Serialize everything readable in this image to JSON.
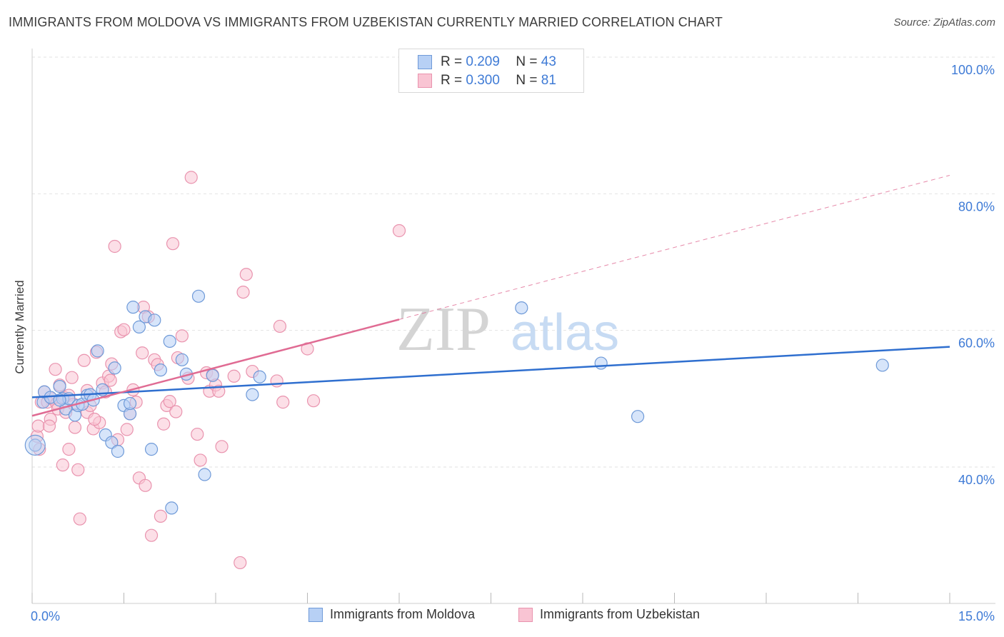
{
  "header": {
    "title": "IMMIGRANTS FROM MOLDOVA VS IMMIGRANTS FROM UZBEKISTAN CURRENTLY MARRIED CORRELATION CHART",
    "source": "Source: ZipAtlas.com"
  },
  "watermark": {
    "part1": "ZIP",
    "part2": "atlas"
  },
  "legend": {
    "r_label": "R =",
    "n_label": "N =",
    "series1": {
      "r": "0.209",
      "n": "43"
    },
    "series2": {
      "r": "0.300",
      "n": "81"
    }
  },
  "colors": {
    "moldova_fill": "#b7d0f5",
    "moldova_stroke": "#6f9ad8",
    "moldova_line": "#2f6fcf",
    "uzbekistan_fill": "#f9c4d3",
    "uzbekistan_stroke": "#e993ae",
    "uzbekistan_line": "#e06b93",
    "tick_text": "#3f7bd6"
  },
  "chart_data": {
    "type": "scatter",
    "title": "IMMIGRANTS FROM MOLDOVA VS IMMIGRANTS FROM UZBEKISTAN CURRENTLY MARRIED CORRELATION CHART",
    "xlabel": "",
    "ylabel": "Currently Married",
    "xlim": [
      0,
      15
    ],
    "ylim": [
      20,
      102
    ],
    "x_tick_labels": [
      {
        "value": 0,
        "label": "0.0%"
      },
      {
        "value": 15,
        "label": "15.0%"
      }
    ],
    "y_tick_labels": [
      {
        "value": 40,
        "label": "40.0%"
      },
      {
        "value": 60,
        "label": "60.0%"
      },
      {
        "value": 80,
        "label": "80.0%"
      },
      {
        "value": 100,
        "label": "100.0%"
      }
    ],
    "legend_position": "top-center",
    "series": [
      {
        "name": "Immigrants from Moldova",
        "r": 0.209,
        "n": 43,
        "trend": {
          "x0": 0,
          "y0": 50.2,
          "x1": 15,
          "y1": 57.6,
          "dashed_to": null
        },
        "points": [
          [
            0.05,
            43.2
          ],
          [
            0.18,
            49.5
          ],
          [
            0.2,
            51.0
          ],
          [
            0.3,
            50.2
          ],
          [
            0.45,
            51.8
          ],
          [
            0.5,
            50.0
          ],
          [
            0.55,
            48.5
          ],
          [
            0.6,
            50.0
          ],
          [
            0.7,
            47.6
          ],
          [
            0.75,
            49.0
          ],
          [
            0.82,
            49.2
          ],
          [
            0.9,
            50.5
          ],
          [
            0.95,
            50.6
          ],
          [
            1.0,
            49.8
          ],
          [
            1.07,
            57.0
          ],
          [
            1.15,
            51.3
          ],
          [
            1.2,
            44.7
          ],
          [
            1.3,
            43.6
          ],
          [
            1.35,
            54.5
          ],
          [
            1.4,
            42.3
          ],
          [
            1.5,
            49.0
          ],
          [
            1.6,
            47.8
          ],
          [
            1.6,
            49.3
          ],
          [
            1.65,
            63.4
          ],
          [
            1.75,
            60.5
          ],
          [
            1.85,
            62.0
          ],
          [
            1.95,
            42.6
          ],
          [
            2.0,
            61.5
          ],
          [
            2.1,
            54.2
          ],
          [
            2.25,
            58.4
          ],
          [
            2.28,
            34.0
          ],
          [
            2.45,
            55.7
          ],
          [
            2.52,
            53.6
          ],
          [
            2.72,
            65.0
          ],
          [
            2.82,
            38.9
          ],
          [
            2.95,
            53.4
          ],
          [
            3.6,
            50.6
          ],
          [
            3.72,
            53.2
          ],
          [
            8.0,
            63.3
          ],
          [
            9.3,
            55.2
          ],
          [
            9.9,
            47.4
          ],
          [
            13.9,
            54.9
          ],
          [
            0.45,
            49.8
          ]
        ]
      },
      {
        "name": "Immigrants from Uzbekistan",
        "r": 0.3,
        "n": 81,
        "trend": {
          "x0": 0,
          "y0": 47.5,
          "x1": 6,
          "y1": 61.6,
          "dashed_to": {
            "x": 15,
            "y": 82.7
          }
        },
        "points": [
          [
            0.08,
            44.5
          ],
          [
            0.1,
            46.0
          ],
          [
            0.12,
            42.6
          ],
          [
            0.15,
            49.5
          ],
          [
            0.2,
            51.0
          ],
          [
            0.25,
            49.5
          ],
          [
            0.3,
            47.0
          ],
          [
            0.32,
            50.0
          ],
          [
            0.38,
            54.3
          ],
          [
            0.4,
            49.3
          ],
          [
            0.42,
            48.5
          ],
          [
            0.45,
            52.0
          ],
          [
            0.5,
            40.3
          ],
          [
            0.52,
            50.2
          ],
          [
            0.55,
            48.0
          ],
          [
            0.6,
            42.6
          ],
          [
            0.65,
            53.1
          ],
          [
            0.7,
            45.8
          ],
          [
            0.75,
            39.6
          ],
          [
            0.78,
            32.4
          ],
          [
            0.85,
            55.6
          ],
          [
            0.9,
            48.0
          ],
          [
            0.95,
            49.0
          ],
          [
            1.0,
            45.6
          ],
          [
            1.05,
            56.8
          ],
          [
            1.1,
            46.5
          ],
          [
            1.15,
            52.3
          ],
          [
            1.2,
            51.0
          ],
          [
            1.25,
            53.3
          ],
          [
            1.3,
            55.1
          ],
          [
            1.35,
            72.3
          ],
          [
            1.4,
            44.0
          ],
          [
            1.45,
            59.8
          ],
          [
            1.5,
            60.1
          ],
          [
            1.55,
            45.5
          ],
          [
            1.6,
            47.8
          ],
          [
            1.65,
            51.3
          ],
          [
            1.7,
            49.5
          ],
          [
            1.75,
            38.4
          ],
          [
            1.8,
            56.7
          ],
          [
            1.82,
            63.4
          ],
          [
            1.85,
            37.3
          ],
          [
            1.9,
            62.0
          ],
          [
            1.95,
            30.0
          ],
          [
            2.0,
            55.7
          ],
          [
            2.05,
            55.0
          ],
          [
            2.1,
            32.8
          ],
          [
            2.15,
            46.3
          ],
          [
            2.2,
            49.0
          ],
          [
            2.25,
            49.6
          ],
          [
            2.3,
            72.7
          ],
          [
            2.35,
            48.1
          ],
          [
            2.38,
            56.0
          ],
          [
            2.45,
            59.2
          ],
          [
            2.55,
            53.0
          ],
          [
            2.6,
            82.4
          ],
          [
            2.7,
            44.8
          ],
          [
            2.75,
            41.0
          ],
          [
            2.85,
            53.8
          ],
          [
            2.9,
            51.1
          ],
          [
            2.95,
            53.5
          ],
          [
            3.0,
            52.0
          ],
          [
            3.05,
            51.1
          ],
          [
            3.1,
            43.0
          ],
          [
            3.3,
            53.3
          ],
          [
            3.4,
            26.0
          ],
          [
            3.45,
            65.6
          ],
          [
            3.5,
            68.2
          ],
          [
            3.6,
            54.0
          ],
          [
            4.0,
            52.6
          ],
          [
            4.05,
            60.6
          ],
          [
            4.1,
            49.5
          ],
          [
            4.5,
            57.3
          ],
          [
            4.6,
            49.7
          ],
          [
            6.0,
            74.6
          ],
          [
            0.28,
            46.0
          ],
          [
            0.6,
            50.5
          ],
          [
            0.68,
            49.2
          ],
          [
            1.02,
            47.0
          ],
          [
            1.28,
            52.7
          ],
          [
            0.9,
            51.2
          ]
        ]
      }
    ]
  },
  "bottom_legend": {
    "series1_label": "Immigrants from Moldova",
    "series2_label": "Immigrants from Uzbekistan"
  }
}
